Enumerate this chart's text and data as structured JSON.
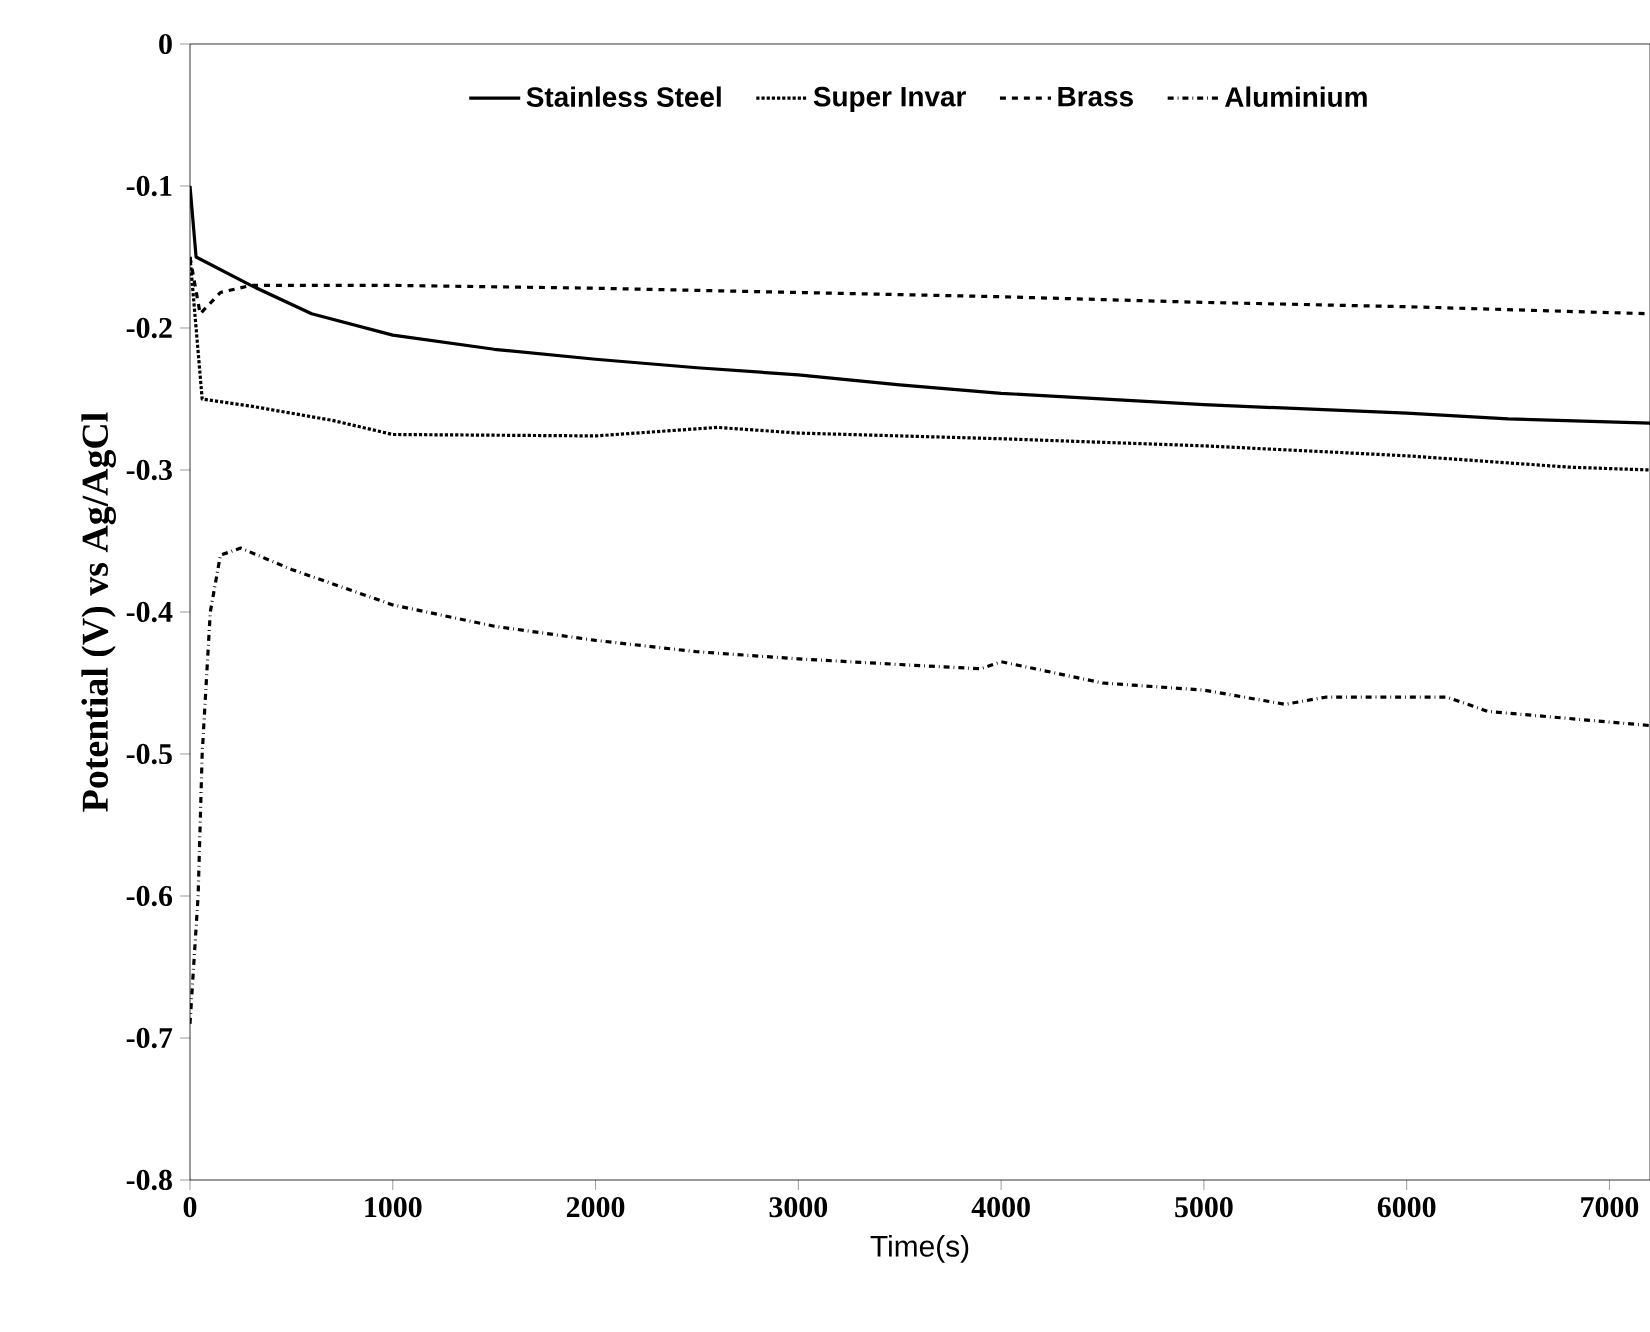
{
  "chart_data": {
    "type": "line",
    "xlabel": "Time(s)",
    "ylabel": "Potential (V)  vs Ag/AgCl",
    "xlim": [
      0,
      7200
    ],
    "xticks": [
      0,
      1000,
      2000,
      3000,
      4000,
      5000,
      6000,
      7000
    ],
    "ylim": [
      -0.8,
      0
    ],
    "yticks": [
      -0.8,
      -0.7,
      -0.6,
      -0.5,
      -0.4,
      -0.3,
      -0.2,
      -0.1,
      0
    ],
    "legend": "top",
    "grid": false,
    "marker": "none",
    "series": [
      {
        "name": "Stainless Steel",
        "color": "#000000",
        "line_style": "solid",
        "x": [
          0,
          30,
          300,
          600,
          1000,
          1500,
          2000,
          2500,
          3000,
          3500,
          4000,
          4500,
          5000,
          5500,
          6000,
          6500,
          7200
        ],
        "values": [
          -0.1,
          -0.15,
          -0.17,
          -0.19,
          -0.205,
          -0.215,
          -0.222,
          -0.228,
          -0.233,
          -0.24,
          -0.246,
          -0.25,
          -0.254,
          -0.257,
          -0.26,
          -0.264,
          -0.267
        ]
      },
      {
        "name": "Super Invar",
        "color": "#000000",
        "line_style": "dotted",
        "x": [
          0,
          60,
          300,
          700,
          1000,
          2000,
          2600,
          3000,
          4000,
          5000,
          6000,
          6800,
          7200
        ],
        "values": [
          -0.15,
          -0.25,
          -0.255,
          -0.265,
          -0.275,
          -0.276,
          -0.27,
          -0.274,
          -0.278,
          -0.283,
          -0.29,
          -0.298,
          -0.3
        ]
      },
      {
        "name": "Brass",
        "color": "#000000",
        "line_style": "dashed",
        "x": [
          0,
          50,
          150,
          300,
          1000,
          2000,
          3000,
          4000,
          5000,
          6000,
          7200
        ],
        "values": [
          -0.15,
          -0.19,
          -0.175,
          -0.17,
          -0.17,
          -0.172,
          -0.175,
          -0.178,
          -0.182,
          -0.185,
          -0.19
        ]
      },
      {
        "name": "Aluminium",
        "color": "#000000",
        "line_style": "dashdot",
        "x": [
          0,
          40,
          60,
          100,
          150,
          250,
          500,
          1000,
          1500,
          2000,
          2500,
          3000,
          3500,
          3900,
          4000,
          4500,
          5000,
          5400,
          5600,
          6200,
          6400,
          7200
        ],
        "values": [
          -0.69,
          -0.6,
          -0.5,
          -0.4,
          -0.36,
          -0.355,
          -0.37,
          -0.395,
          -0.41,
          -0.42,
          -0.428,
          -0.433,
          -0.437,
          -0.44,
          -0.435,
          -0.45,
          -0.455,
          -0.465,
          -0.46,
          -0.46,
          -0.47,
          -0.48
        ]
      }
    ]
  }
}
